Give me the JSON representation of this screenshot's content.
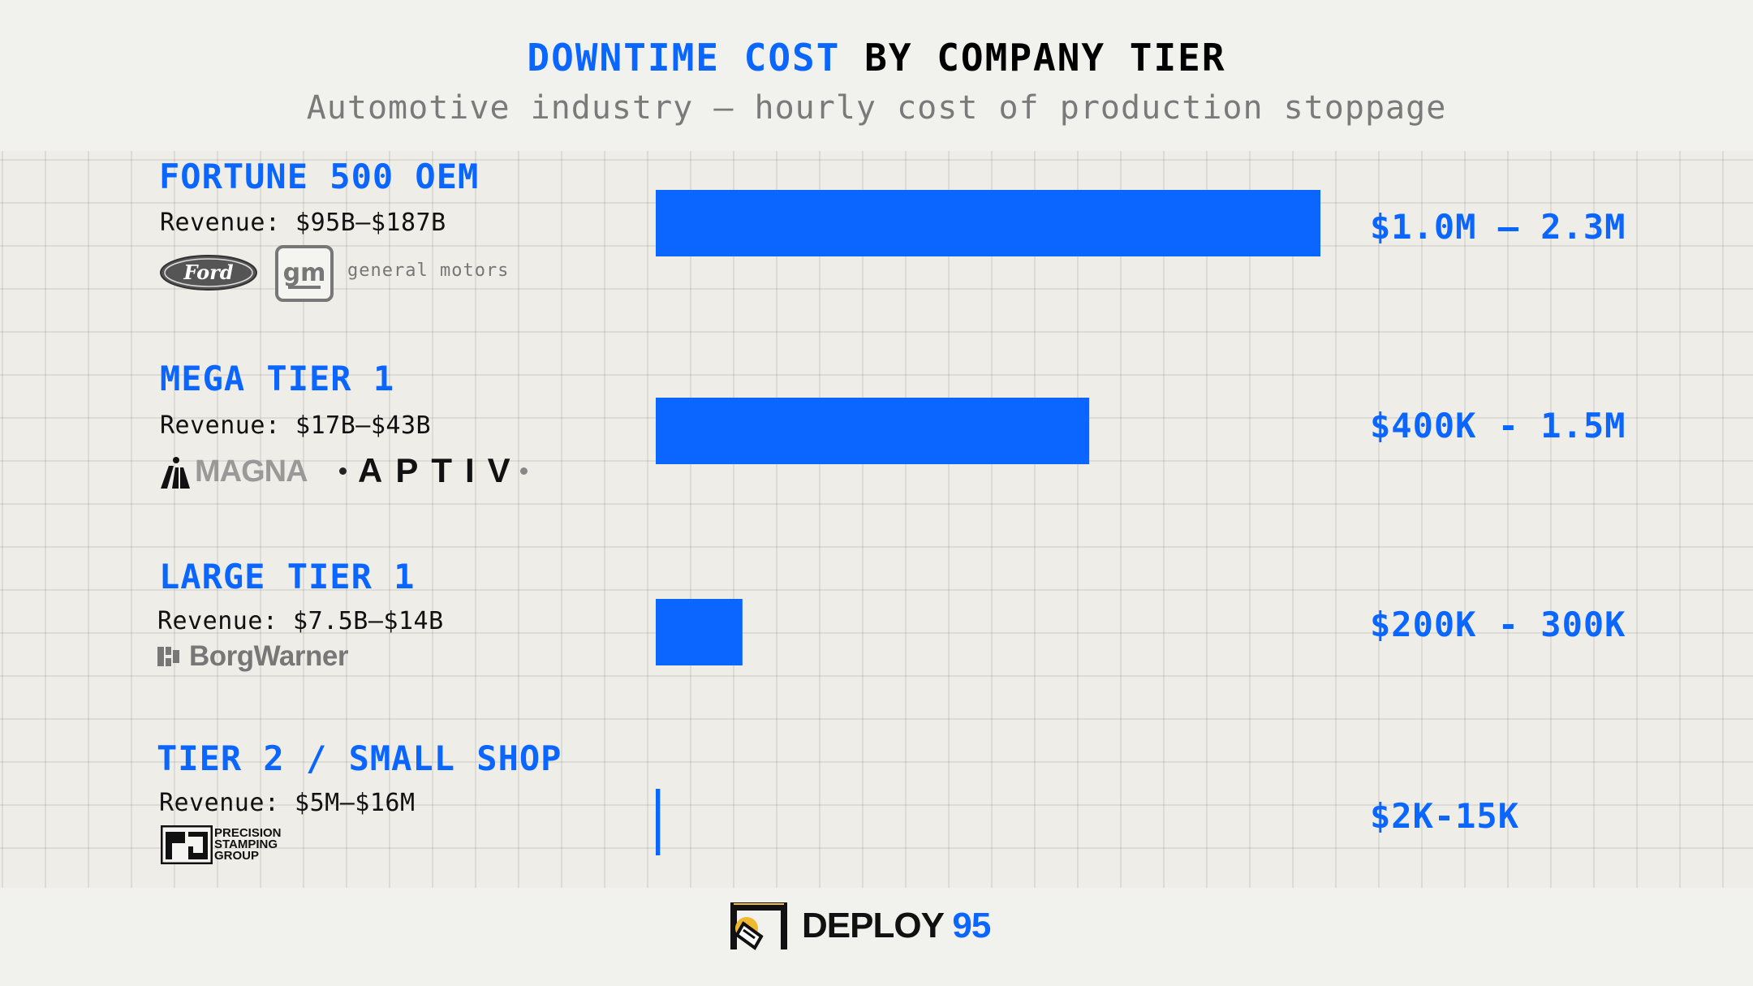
{
  "title": {
    "part1": "DOWNTIME COST",
    "part2": " BY COMPANY TIER"
  },
  "subtitle": "Automotive industry — hourly cost of production stoppage",
  "tiers": [
    {
      "name": "FORTUNE 500 OEM",
      "revenue": "Revenue: $95B–$187B",
      "range_label": "$1.0M – 2.3M",
      "logos": {
        "ford": "Ford",
        "gm": "gm",
        "gm_text": "general motors"
      }
    },
    {
      "name": "MEGA TIER 1",
      "revenue": "Revenue: $17B–$43B",
      "range_label": "$400K - 1.5M",
      "logos": {
        "magna": "MAGNA",
        "aptiv": "APTIV"
      }
    },
    {
      "name": "LARGE TIER 1",
      "revenue": "Revenue: $7.5B–$14B",
      "range_label": "$200K - 300K",
      "logos": {
        "borgwarner": "BorgWarner"
      }
    },
    {
      "name": "TIER 2 / SMALL SHOP",
      "revenue": "Revenue: $5M–$16M",
      "range_label": "$2K-15K",
      "logos": {
        "psg_line1": "PRECISION",
        "psg_line2": "STAMPING",
        "psg_line3": "GROUP"
      }
    }
  ],
  "chart_data": {
    "type": "bar",
    "orientation": "horizontal",
    "categories": [
      "FORTUNE 500 OEM",
      "MEGA TIER 1",
      "LARGE TIER 1",
      "TIER 2 / SMALL SHOP"
    ],
    "values": [
      2300000,
      1500000,
      300000,
      15000
    ],
    "value_labels": [
      "$1.0M – 2.3M",
      "$400K - 1.5M",
      "$200K - 300K",
      "$2K-15K"
    ],
    "xlim": [
      0,
      2300000
    ],
    "title": "DOWNTIME COST BY COMPANY TIER",
    "subtitle": "Automotive industry — hourly cost of production stoppage",
    "grid": true,
    "bar_color": "#0a66ff"
  },
  "footer": {
    "brand": "DEPLOY",
    "brand_number": "95"
  },
  "colors": {
    "accent": "#0a66ff",
    "text": "#111111",
    "muted": "#7a7a7a"
  }
}
